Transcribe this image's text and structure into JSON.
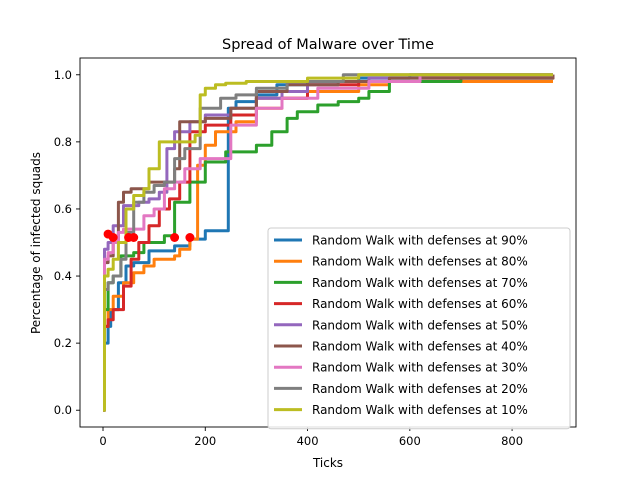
{
  "chart_data": {
    "type": "line",
    "title": "Spread of Malware over Time",
    "xlabel": "Ticks",
    "ylabel": "Percentage of infected squads",
    "xlim": [
      -45,
      925
    ],
    "ylim": [
      -0.05,
      1.05
    ],
    "xticks": [
      0,
      200,
      400,
      600,
      800
    ],
    "xtick_labels": [
      "0",
      "200",
      "400",
      "600",
      "800"
    ],
    "yticks": [
      0.0,
      0.2,
      0.4,
      0.6,
      0.8,
      1.0
    ],
    "ytick_labels": [
      "0.0",
      "0.2",
      "0.4",
      "0.6",
      "0.8",
      "1.0"
    ],
    "grid": false,
    "legend_position": "lower right",
    "series": [
      {
        "name": "Random Walk with defenses at 90%",
        "color": "#1f77b4",
        "x": [
          0,
          3,
          10,
          15,
          30,
          45,
          60,
          70,
          90,
          120,
          140,
          170,
          190,
          200,
          230,
          245,
          260,
          300,
          340,
          400,
          500,
          600,
          880
        ],
        "y": [
          0,
          0.2,
          0.25,
          0.3,
          0.38,
          0.43,
          0.44,
          0.44,
          0.475,
          0.475,
          0.49,
          0.51,
          0.51,
          0.535,
          0.535,
          0.9,
          0.92,
          0.94,
          0.97,
          0.98,
          0.99,
          1.0,
          1.0
        ]
      },
      {
        "name": "Random Walk with defenses at 80%",
        "color": "#ff7f0e",
        "x": [
          0,
          3,
          10,
          20,
          40,
          60,
          80,
          100,
          140,
          150,
          170,
          185,
          200,
          220,
          260,
          300,
          350,
          400,
          500,
          560,
          880
        ],
        "y": [
          0,
          0.25,
          0.3,
          0.34,
          0.38,
          0.41,
          0.43,
          0.45,
          0.46,
          0.48,
          0.51,
          0.73,
          0.79,
          0.83,
          0.86,
          0.9,
          0.93,
          0.95,
          0.97,
          0.98,
          0.98
        ]
      },
      {
        "name": "Random Walk with defenses at 70%",
        "color": "#2ca02c",
        "x": [
          0,
          3,
          10,
          20,
          35,
          60,
          80,
          120,
          140,
          170,
          200,
          240,
          270,
          300,
          330,
          360,
          380,
          420,
          460,
          500,
          520,
          560,
          700,
          880
        ],
        "y": [
          0,
          0.3,
          0.38,
          0.4,
          0.46,
          0.47,
          0.5,
          0.52,
          0.62,
          0.68,
          0.74,
          0.77,
          0.77,
          0.79,
          0.83,
          0.87,
          0.89,
          0.91,
          0.92,
          0.93,
          0.95,
          0.98,
          0.99,
          1.0
        ]
      },
      {
        "name": "Random Walk with defenses at 60%",
        "color": "#d62728",
        "x": [
          0,
          3,
          10,
          20,
          40,
          55,
          70,
          90,
          110,
          130,
          150,
          170,
          200,
          250,
          300,
          400,
          500,
          620,
          880
        ],
        "y": [
          0,
          0.25,
          0.27,
          0.3,
          0.37,
          0.45,
          0.5,
          0.55,
          0.6,
          0.63,
          0.68,
          0.83,
          0.85,
          0.88,
          0.93,
          0.97,
          0.98,
          0.99,
          1.0
        ],
        "markers": [
          [
            10,
            0.525
          ],
          [
            20,
            0.515
          ],
          [
            50,
            0.515
          ],
          [
            60,
            0.515
          ],
          [
            140,
            0.515
          ],
          [
            170,
            0.515
          ]
        ]
      },
      {
        "name": "Random Walk with defenses at 50%",
        "color": "#9467bd",
        "x": [
          0,
          3,
          10,
          20,
          40,
          55,
          70,
          90,
          110,
          125,
          140,
          170,
          200,
          250,
          300,
          350,
          400,
          460,
          520,
          620,
          700,
          880
        ],
        "y": [
          0,
          0.48,
          0.5,
          0.55,
          0.61,
          0.61,
          0.62,
          0.63,
          0.65,
          0.78,
          0.83,
          0.86,
          0.88,
          0.9,
          0.93,
          0.95,
          0.97,
          0.98,
          0.99,
          1.0,
          1.0,
          1.0
        ]
      },
      {
        "name": "Random Walk with defenses at 40%",
        "color": "#8c564b",
        "x": [
          0,
          3,
          10,
          20,
          30,
          40,
          55,
          70,
          90,
          120,
          140,
          150,
          200,
          250,
          300,
          360,
          460,
          560,
          700,
          880
        ],
        "y": [
          0,
          0.44,
          0.46,
          0.5,
          0.62,
          0.65,
          0.66,
          0.66,
          0.68,
          0.68,
          0.72,
          0.86,
          0.87,
          0.9,
          0.95,
          0.97,
          0.98,
          0.99,
          0.99,
          1.0
        ]
      },
      {
        "name": "Random Walk with defenses at 30%",
        "color": "#e377c2",
        "x": [
          0,
          3,
          10,
          20,
          30,
          40,
          60,
          80,
          100,
          120,
          140,
          160,
          190,
          210,
          250,
          300,
          350,
          420,
          520,
          620,
          880
        ],
        "y": [
          0,
          0.45,
          0.47,
          0.5,
          0.53,
          0.54,
          0.54,
          0.58,
          0.6,
          0.66,
          0.68,
          0.72,
          0.75,
          0.75,
          0.85,
          0.9,
          0.93,
          0.96,
          0.98,
          1.0,
          1.0
        ]
      },
      {
        "name": "Random Walk with defenses at 20%",
        "color": "#7f7f7f",
        "x": [
          0,
          3,
          10,
          20,
          35,
          45,
          60,
          80,
          100,
          120,
          140,
          160,
          190,
          230,
          260,
          300,
          360,
          470,
          520,
          700,
          880
        ],
        "y": [
          0,
          0.36,
          0.38,
          0.4,
          0.45,
          0.53,
          0.62,
          0.65,
          0.67,
          0.68,
          0.75,
          0.78,
          0.9,
          0.93,
          0.94,
          0.96,
          0.98,
          1.0,
          1.0,
          1.0,
          1.0
        ]
      },
      {
        "name": "Random Walk with defenses at 10%",
        "color": "#bcbd22",
        "x": [
          0,
          3,
          10,
          20,
          30,
          45,
          60,
          80,
          90,
          110,
          140,
          160,
          180,
          190,
          200,
          220,
          240,
          280,
          340,
          400,
          500,
          600,
          880
        ],
        "y": [
          0,
          0.4,
          0.42,
          0.45,
          0.5,
          0.6,
          0.64,
          0.66,
          0.72,
          0.8,
          0.8,
          0.8,
          0.82,
          0.94,
          0.96,
          0.97,
          0.975,
          0.98,
          0.98,
          0.99,
          1.0,
          1.0,
          1.0
        ]
      }
    ]
  }
}
